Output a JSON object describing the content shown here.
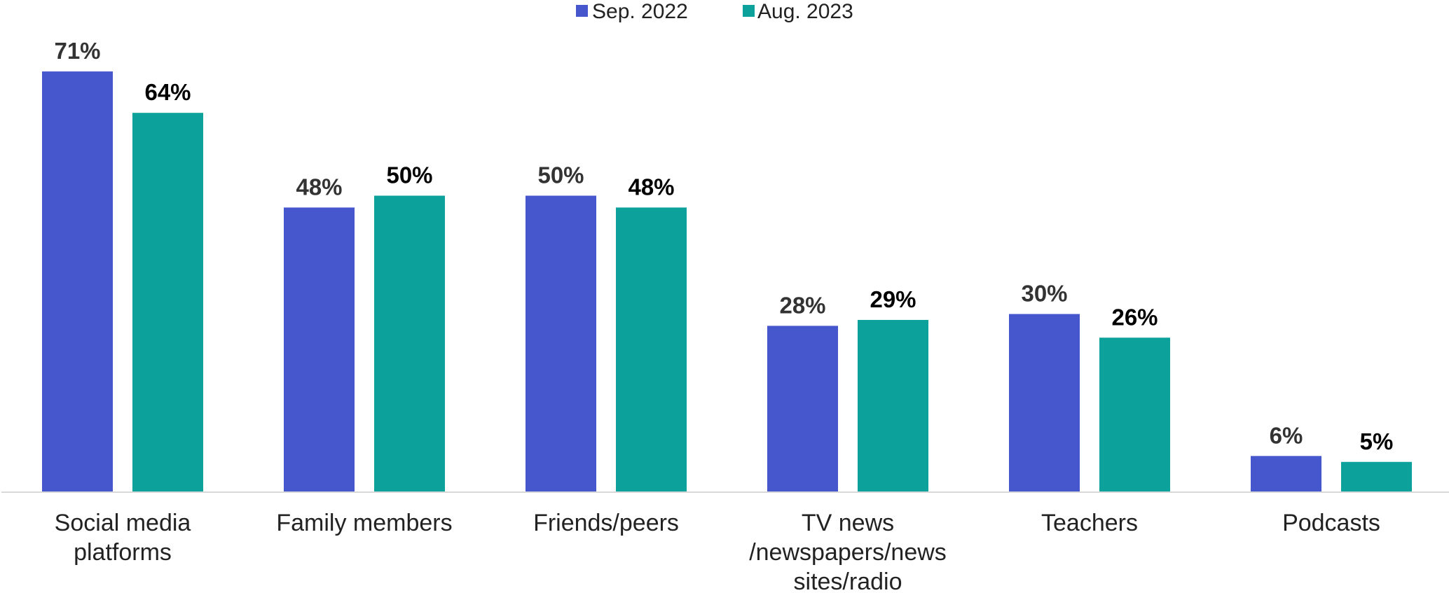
{
  "chart_data": {
    "type": "bar",
    "categories": [
      [
        "Social media",
        "platforms"
      ],
      [
        "Family members"
      ],
      [
        "Friends/peers"
      ],
      [
        "TV news",
        "/newspapers/news",
        "sites/radio"
      ],
      [
        "Teachers"
      ],
      [
        "Podcasts"
      ]
    ],
    "series": [
      {
        "name": "Sep. 2022",
        "values": [
          71,
          48,
          50,
          28,
          30,
          6
        ],
        "labels": [
          "71%",
          "48%",
          "50%",
          "28%",
          "30%",
          "6%"
        ],
        "color": "#4657CE",
        "label_color": "#333333"
      },
      {
        "name": "Aug. 2023",
        "values": [
          64,
          50,
          48,
          29,
          26,
          5
        ],
        "labels": [
          "64%",
          "50%",
          "48%",
          "29%",
          "26%",
          "5%"
        ],
        "color": "#0CA19B",
        "label_color": "#000000"
      }
    ],
    "ylim": [
      0,
      75
    ],
    "grid": false,
    "legend_position": "top-center",
    "title": "",
    "xlabel": "",
    "ylabel": "",
    "axis_color": "#D9D9D9"
  }
}
